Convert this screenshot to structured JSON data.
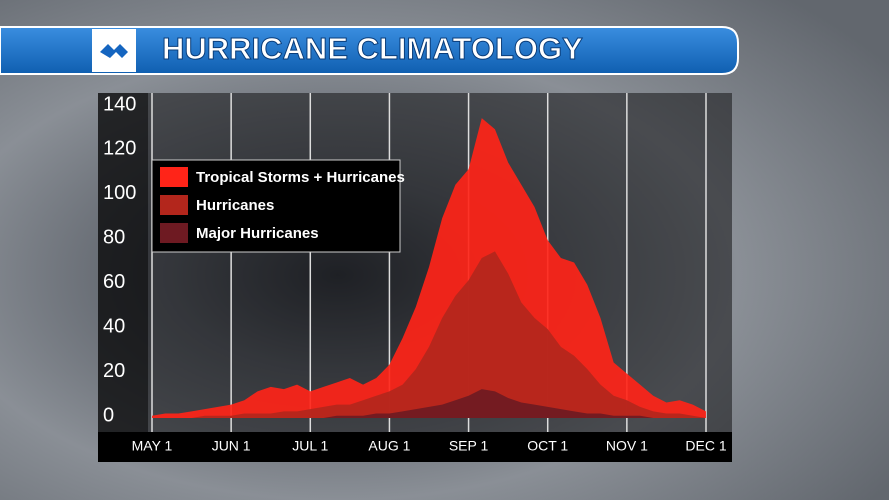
{
  "chart_data": {
    "type": "area",
    "title": "HURRICANE CLIMATOLOGY",
    "categories": [
      "MAY 1",
      null,
      null,
      null,
      null,
      null,
      "JUN 1",
      null,
      null,
      null,
      null,
      null,
      "JUL 1",
      null,
      null,
      null,
      null,
      null,
      "AUG 1",
      null,
      null,
      null,
      null,
      null,
      "SEP 1",
      null,
      null,
      null,
      null,
      null,
      "OCT 1",
      null,
      null,
      null,
      null,
      null,
      "NOV 1",
      null,
      null,
      null,
      null,
      null,
      "DEC 1"
    ],
    "series": [
      {
        "name": "Tropical Storms + Hurricanes",
        "color": "#ff2418",
        "values": [
          1,
          2,
          2,
          3,
          4,
          5,
          6,
          8,
          12,
          14,
          13,
          15,
          12,
          14,
          16,
          18,
          15,
          18,
          24,
          36,
          50,
          68,
          90,
          105,
          112,
          135,
          130,
          115,
          105,
          95,
          80,
          72,
          70,
          60,
          45,
          25,
          20,
          15,
          10,
          7,
          8,
          6,
          3
        ]
      },
      {
        "name": "Hurricanes",
        "color": "#b3261c",
        "values": [
          0,
          0,
          0,
          0,
          1,
          1,
          1,
          2,
          2,
          2,
          3,
          3,
          4,
          5,
          6,
          6,
          8,
          10,
          12,
          15,
          22,
          32,
          45,
          55,
          62,
          72,
          75,
          65,
          52,
          45,
          40,
          32,
          28,
          22,
          15,
          10,
          8,
          5,
          3,
          2,
          2,
          1,
          0
        ]
      },
      {
        "name": "Major Hurricanes",
        "color": "#6e1a22",
        "values": [
          0,
          0,
          0,
          0,
          0,
          0,
          0,
          0,
          0,
          0,
          0,
          0,
          0,
          0,
          1,
          1,
          1,
          2,
          2,
          3,
          4,
          5,
          6,
          8,
          10,
          13,
          12,
          9,
          7,
          6,
          5,
          4,
          3,
          2,
          2,
          1,
          1,
          1,
          0,
          0,
          0,
          0,
          0
        ]
      }
    ],
    "ylim": [
      0,
      140
    ],
    "yticks": [
      0,
      20,
      40,
      60,
      80,
      100,
      120,
      140
    ],
    "grid": true,
    "legend": "upper left"
  }
}
